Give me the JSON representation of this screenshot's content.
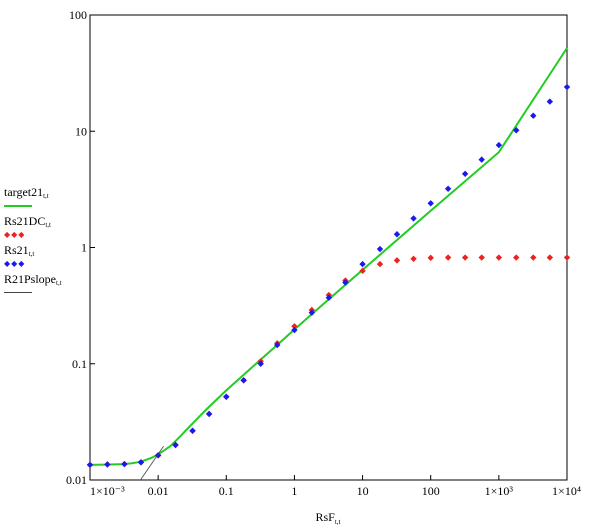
{
  "chart_data": {
    "type": "line",
    "x_scale": "log",
    "y_scale": "log",
    "xlim": [
      0.001,
      10000
    ],
    "ylim": [
      0.01,
      100
    ],
    "xlabel": "RsF",
    "xlabel_sub": "t,t",
    "x_ticks": [
      0.001,
      0.01,
      0.1,
      1,
      10,
      100,
      1000,
      10000
    ],
    "x_tick_labels": [
      "1×10⁻³",
      "0.01",
      "0.1",
      "1",
      "10",
      "100",
      "1×10³",
      "1×10⁴"
    ],
    "y_ticks": [
      0.01,
      0.1,
      1,
      10,
      100
    ],
    "y_tick_labels": [
      "0.01",
      "0.1",
      "1",
      "10",
      "100"
    ],
    "grid": false,
    "legend_position": "left",
    "series": [
      {
        "name": "target21",
        "name_sub": "t,t",
        "style": "line",
        "color": "#22cc22",
        "x": [
          0.001,
          0.002,
          0.003,
          0.004,
          0.005,
          0.006,
          0.008,
          0.01,
          0.015,
          0.02,
          0.03,
          0.05,
          0.1,
          0.2,
          0.3,
          0.5,
          1,
          2,
          5,
          10,
          100,
          1000,
          10000
        ],
        "y": [
          0.0135,
          0.0136,
          0.0137,
          0.0139,
          0.0142,
          0.0146,
          0.0155,
          0.0166,
          0.0195,
          0.023,
          0.0295,
          0.04,
          0.059,
          0.085,
          0.105,
          0.137,
          0.197,
          0.282,
          0.451,
          0.642,
          2.07,
          6.6,
          52
        ]
      },
      {
        "name": "Rs21DC",
        "name_sub": "t,t",
        "style": "markers",
        "marker": "diamond",
        "color": "#ee2222",
        "x": [
          0.001,
          0.0018,
          0.0032,
          0.0056,
          0.01,
          0.018,
          0.032,
          0.056,
          0.1,
          0.18,
          0.32,
          0.56,
          1,
          1.8,
          3.2,
          5.6,
          10,
          18,
          32,
          56,
          100,
          180,
          320,
          560,
          1000,
          1800,
          3200,
          5600,
          10000
        ],
        "y": [
          0.0135,
          0.0136,
          0.0137,
          0.0142,
          0.0163,
          0.02,
          0.0265,
          0.037,
          0.052,
          0.072,
          0.105,
          0.15,
          0.21,
          0.29,
          0.39,
          0.52,
          0.63,
          0.72,
          0.775,
          0.8,
          0.815,
          0.82,
          0.82,
          0.82,
          0.82,
          0.82,
          0.82,
          0.82,
          0.82
        ]
      },
      {
        "name": "Rs21",
        "name_sub": "t,t",
        "style": "markers",
        "marker": "diamond",
        "color": "#1a1aee",
        "x": [
          0.001,
          0.0018,
          0.0032,
          0.0056,
          0.01,
          0.018,
          0.032,
          0.056,
          0.1,
          0.18,
          0.32,
          0.56,
          1,
          1.8,
          3.2,
          5.6,
          10,
          18,
          32,
          56,
          100,
          180,
          320,
          560,
          1000,
          1800,
          3200,
          5600,
          10000
        ],
        "y": [
          0.0135,
          0.0136,
          0.0137,
          0.0142,
          0.0163,
          0.02,
          0.0265,
          0.037,
          0.052,
          0.072,
          0.1,
          0.145,
          0.195,
          0.275,
          0.37,
          0.5,
          0.72,
          0.97,
          1.3,
          1.78,
          2.4,
          3.2,
          4.3,
          5.7,
          7.6,
          10.2,
          13.6,
          18,
          24
        ]
      },
      {
        "name": "R21Pslope",
        "name_sub": "t,t",
        "style": "thin-line",
        "color": "#444444",
        "x": [
          0.0055,
          0.012
        ],
        "y": [
          0.01,
          0.0195
        ]
      }
    ]
  }
}
